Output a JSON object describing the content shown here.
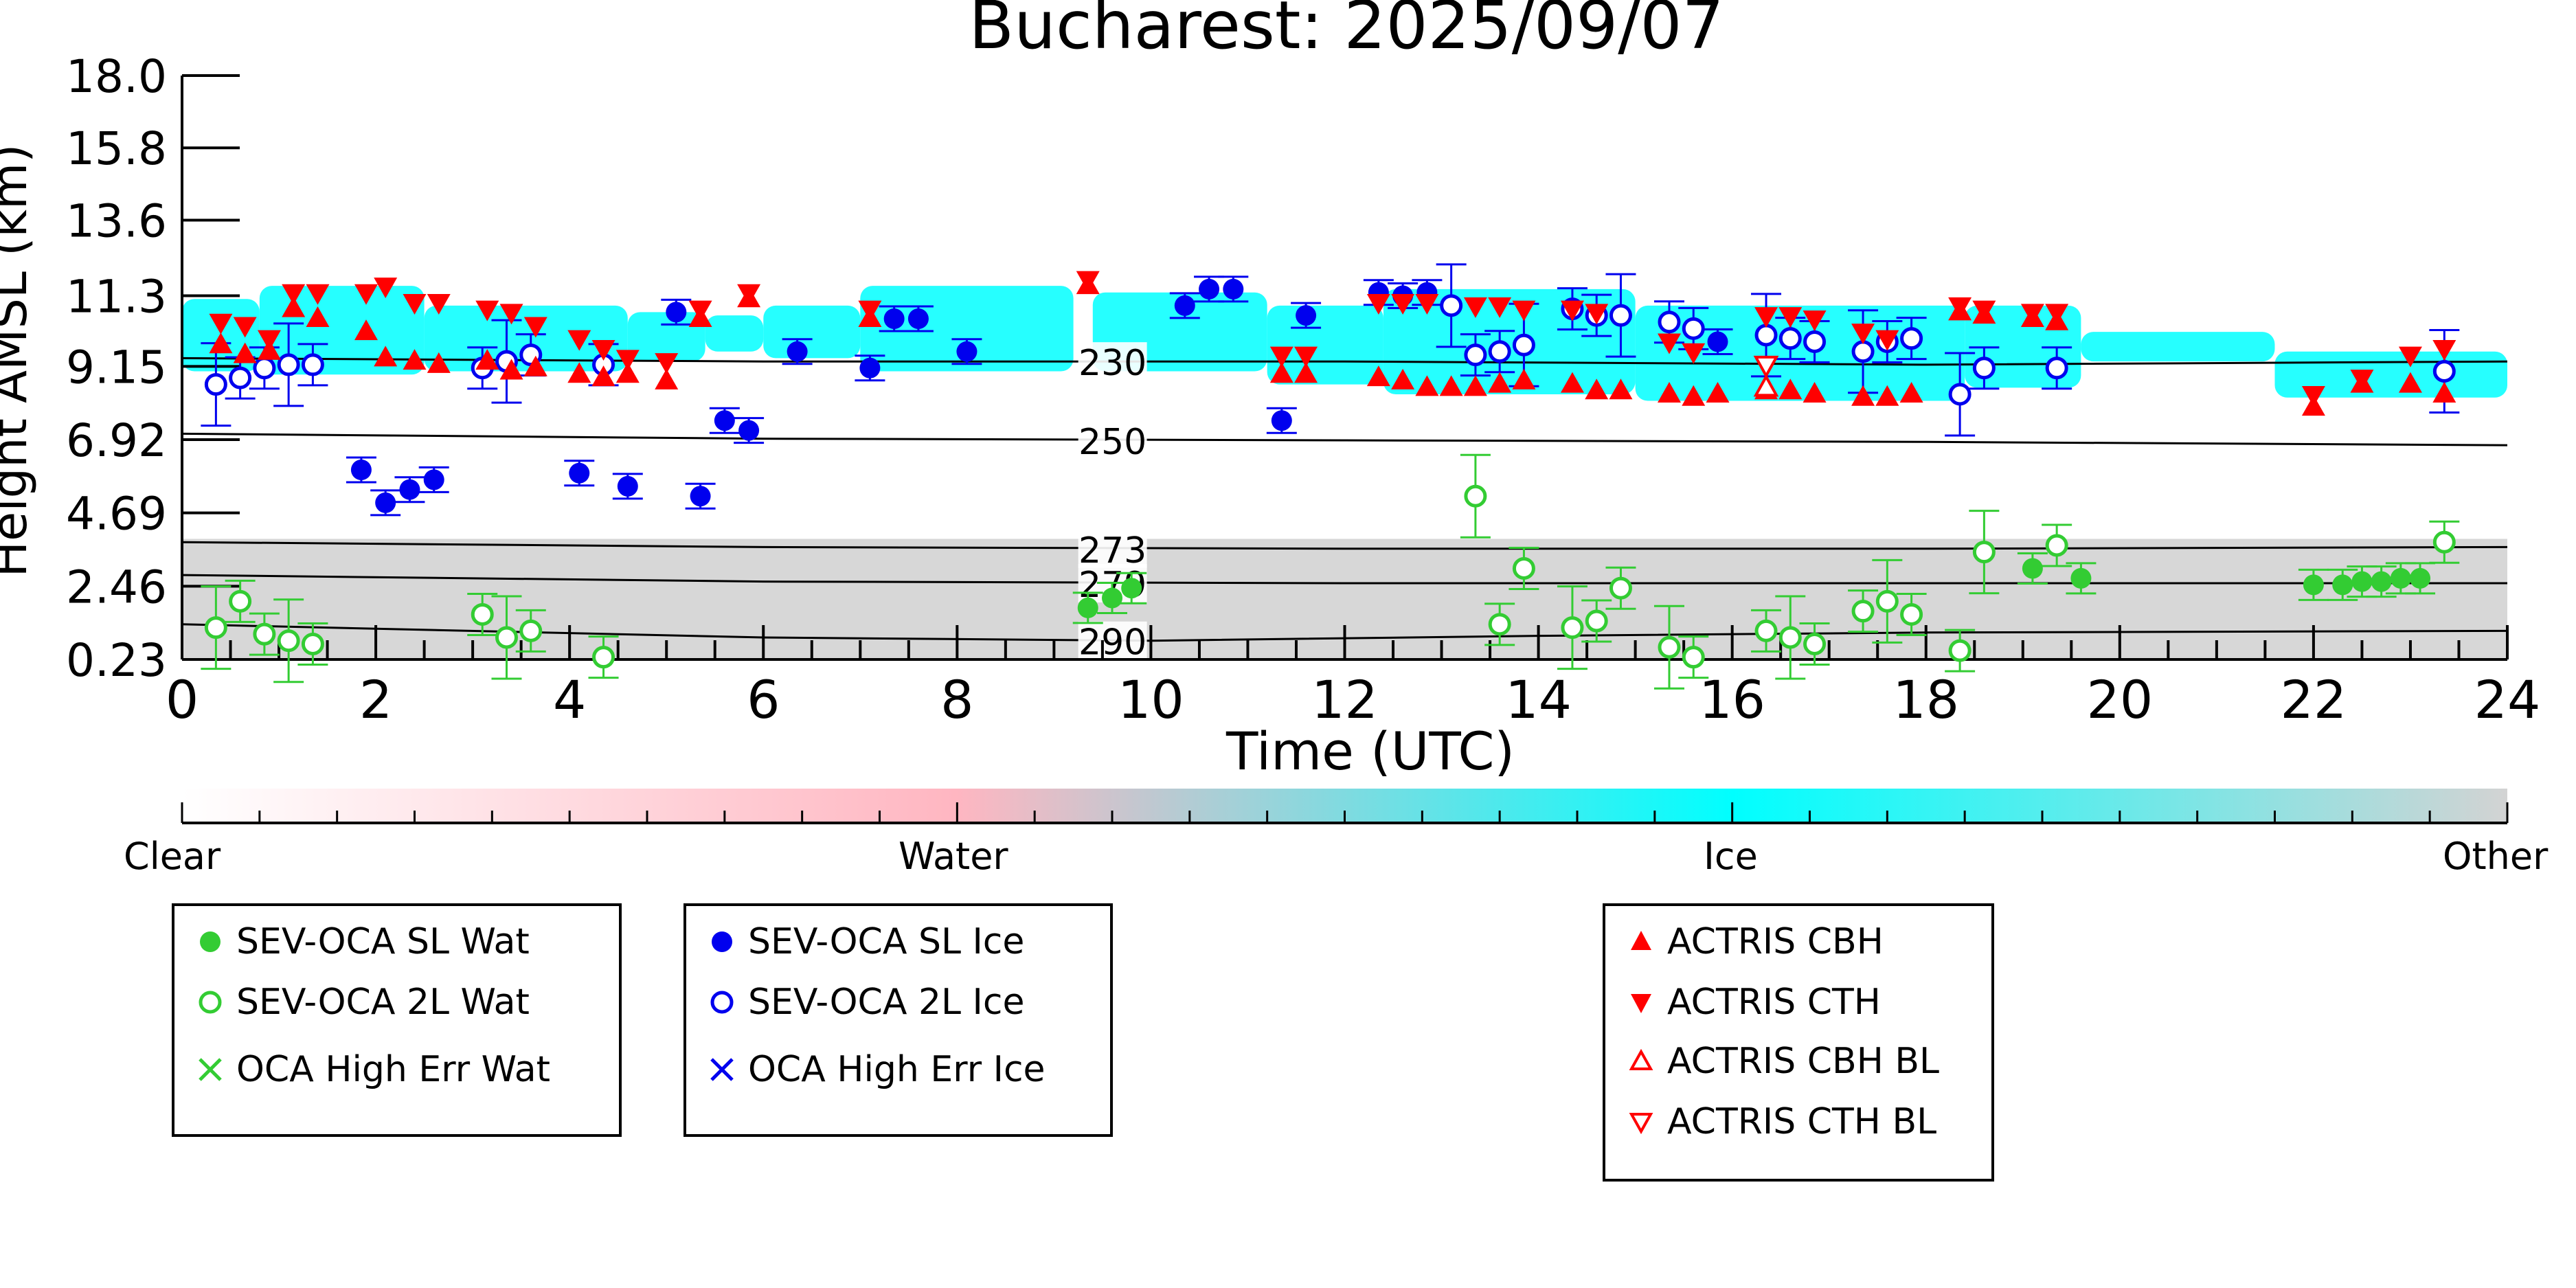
{
  "chart_data": {
    "type": "scatter",
    "title": "Bucharest: 2025/09/07",
    "xlabel": "Time (UTC)",
    "ylabel": "Height AMSL (km)",
    "xlim": [
      0,
      24
    ],
    "ylim": [
      0.23,
      18.0
    ],
    "xticks": [
      "0",
      "2",
      "4",
      "6",
      "8",
      "10",
      "12",
      "14",
      "16",
      "18",
      "20",
      "22",
      "24"
    ],
    "yticks": [
      "0.23",
      "2.46",
      "4.69",
      "6.92",
      "9.15",
      "11.3",
      "13.6",
      "15.8",
      "18.0"
    ],
    "ytick_values": [
      0.23,
      2.46,
      4.69,
      6.92,
      9.15,
      11.3,
      13.6,
      15.8,
      18.0
    ],
    "background": "cloud classification curtain (grey low layer ~0.3-3.9 km all day; cyan ice cloud ~8-11.5 km)",
    "temperature_contours": [
      {
        "label": "230",
        "points": [
          [
            0,
            9.4
          ],
          [
            6,
            9.3
          ],
          [
            12,
            9.3
          ],
          [
            18,
            9.2
          ],
          [
            24,
            9.3
          ]
        ]
      },
      {
        "label": "250",
        "points": [
          [
            0,
            7.1
          ],
          [
            6,
            6.95
          ],
          [
            12,
            6.9
          ],
          [
            18,
            6.85
          ],
          [
            24,
            6.75
          ]
        ]
      },
      {
        "label": "273",
        "points": [
          [
            0,
            3.8
          ],
          [
            6,
            3.65
          ],
          [
            12,
            3.6
          ],
          [
            18,
            3.6
          ],
          [
            24,
            3.65
          ]
        ]
      },
      {
        "label": "279",
        "points": [
          [
            0,
            2.8
          ],
          [
            6,
            2.6
          ],
          [
            12,
            2.55
          ],
          [
            18,
            2.55
          ],
          [
            24,
            2.55
          ]
        ]
      },
      {
        "label": "290",
        "points": [
          [
            0,
            1.3
          ],
          [
            6,
            0.9
          ],
          [
            10,
            0.8
          ],
          [
            14,
            0.95
          ],
          [
            18,
            1.05
          ],
          [
            24,
            1.1
          ]
        ]
      }
    ],
    "series": [
      {
        "name": "SEV-OCA SL Wat",
        "color": "#33cc33",
        "marker": "filled-circle",
        "points": [
          [
            9.35,
            1.8
          ],
          [
            9.6,
            2.1
          ],
          [
            9.8,
            2.4
          ],
          [
            19.1,
            3.0
          ],
          [
            19.6,
            2.7
          ],
          [
            22.0,
            2.5
          ],
          [
            22.3,
            2.5
          ],
          [
            22.5,
            2.6
          ],
          [
            22.7,
            2.6
          ],
          [
            22.9,
            2.7
          ],
          [
            23.1,
            2.7
          ]
        ]
      },
      {
        "name": "SEV-OCA 2L Wat",
        "color": "#33cc33",
        "marker": "open-circle",
        "points": [
          [
            0.35,
            1.2
          ],
          [
            0.6,
            2.0
          ],
          [
            0.85,
            1.0
          ],
          [
            1.1,
            0.8
          ],
          [
            1.35,
            0.7
          ],
          [
            3.1,
            1.6
          ],
          [
            3.35,
            0.9
          ],
          [
            3.6,
            1.1
          ],
          [
            4.35,
            0.3
          ],
          [
            13.35,
            5.2
          ],
          [
            13.6,
            1.3
          ],
          [
            13.85,
            3.0
          ],
          [
            14.35,
            1.2
          ],
          [
            14.6,
            1.4
          ],
          [
            14.85,
            2.4
          ],
          [
            15.35,
            0.6
          ],
          [
            15.6,
            0.3
          ],
          [
            16.35,
            1.1
          ],
          [
            16.6,
            0.9
          ],
          [
            16.85,
            0.7
          ],
          [
            17.35,
            1.7
          ],
          [
            17.6,
            2.0
          ],
          [
            17.85,
            1.6
          ],
          [
            18.35,
            0.5
          ],
          [
            18.6,
            3.5
          ],
          [
            19.35,
            3.7
          ],
          [
            23.35,
            3.8
          ]
        ]
      },
      {
        "name": "OCA High Err Wat",
        "color": "#33cc33",
        "marker": "x",
        "points": []
      },
      {
        "name": "SEV-OCA SL Ice",
        "color": "#0000ee",
        "marker": "filled-circle",
        "points": [
          [
            1.85,
            6.0
          ],
          [
            2.1,
            5.0
          ],
          [
            2.35,
            5.4
          ],
          [
            2.6,
            5.7
          ],
          [
            4.1,
            5.9
          ],
          [
            4.6,
            5.5
          ],
          [
            5.35,
            5.2
          ],
          [
            5.1,
            10.8
          ],
          [
            5.6,
            7.5
          ],
          [
            5.85,
            7.2
          ],
          [
            6.35,
            9.6
          ],
          [
            7.1,
            9.1
          ],
          [
            7.35,
            10.6
          ],
          [
            7.6,
            10.6
          ],
          [
            8.1,
            9.6
          ],
          [
            10.35,
            11.0
          ],
          [
            10.6,
            11.5
          ],
          [
            10.85,
            11.5
          ],
          [
            11.35,
            7.5
          ],
          [
            11.6,
            10.7
          ],
          [
            12.35,
            11.4
          ],
          [
            12.6,
            11.3
          ],
          [
            12.85,
            11.4
          ],
          [
            15.85,
            9.9
          ]
        ]
      },
      {
        "name": "SEV-OCA 2L Ice",
        "color": "#0000ee",
        "marker": "open-circle",
        "points": [
          [
            0.35,
            8.6
          ],
          [
            0.6,
            8.8
          ],
          [
            0.85,
            9.1
          ],
          [
            1.1,
            9.2
          ],
          [
            1.35,
            9.2
          ],
          [
            3.1,
            9.1
          ],
          [
            3.35,
            9.3
          ],
          [
            3.6,
            9.5
          ],
          [
            4.35,
            9.2
          ],
          [
            13.1,
            11.0
          ],
          [
            13.35,
            9.5
          ],
          [
            13.6,
            9.6
          ],
          [
            13.85,
            9.8
          ],
          [
            14.35,
            10.9
          ],
          [
            14.6,
            10.7
          ],
          [
            14.85,
            10.7
          ],
          [
            15.35,
            10.5
          ],
          [
            15.6,
            10.3
          ],
          [
            16.35,
            10.1
          ],
          [
            16.6,
            10.0
          ],
          [
            16.85,
            9.9
          ],
          [
            17.35,
            9.6
          ],
          [
            17.6,
            9.9
          ],
          [
            17.85,
            10.0
          ],
          [
            18.35,
            8.3
          ],
          [
            18.6,
            9.1
          ],
          [
            19.35,
            9.1
          ],
          [
            23.35,
            9.0
          ]
        ]
      },
      {
        "name": "OCA High Err Ice",
        "color": "#0000ee",
        "marker": "x",
        "points": []
      },
      {
        "name": "ACTRIS CBH",
        "color": "#ff0000",
        "marker": "triangle-up",
        "points": [
          [
            0.4,
            9.8
          ],
          [
            0.65,
            9.5
          ],
          [
            0.9,
            9.6
          ],
          [
            1.15,
            10.9
          ],
          [
            1.4,
            10.6
          ],
          [
            1.9,
            10.2
          ],
          [
            2.1,
            9.4
          ],
          [
            2.4,
            9.3
          ],
          [
            2.65,
            9.2
          ],
          [
            3.15,
            9.3
          ],
          [
            3.4,
            9.0
          ],
          [
            3.65,
            9.1
          ],
          [
            4.1,
            8.9
          ],
          [
            4.35,
            8.8
          ],
          [
            4.6,
            8.9
          ],
          [
            5.0,
            8.7
          ],
          [
            5.35,
            10.6
          ],
          [
            5.85,
            11.2
          ],
          [
            7.1,
            10.6
          ],
          [
            9.35,
            11.6
          ],
          [
            11.35,
            8.9
          ],
          [
            11.6,
            8.9
          ],
          [
            12.35,
            8.8
          ],
          [
            12.6,
            8.7
          ],
          [
            12.85,
            8.5
          ],
          [
            13.1,
            8.5
          ],
          [
            13.35,
            8.5
          ],
          [
            13.6,
            8.6
          ],
          [
            13.85,
            8.7
          ],
          [
            14.35,
            8.6
          ],
          [
            14.6,
            8.4
          ],
          [
            14.85,
            8.4
          ],
          [
            15.35,
            8.3
          ],
          [
            15.6,
            8.2
          ],
          [
            15.85,
            8.3
          ],
          [
            16.35,
            8.4
          ],
          [
            16.6,
            8.4
          ],
          [
            16.85,
            8.3
          ],
          [
            17.35,
            8.2
          ],
          [
            17.6,
            8.2
          ],
          [
            17.85,
            8.3
          ],
          [
            18.35,
            10.8
          ],
          [
            18.6,
            10.7
          ],
          [
            19.1,
            10.6
          ],
          [
            19.35,
            10.5
          ],
          [
            22.0,
            7.9
          ],
          [
            22.5,
            8.6
          ],
          [
            23.0,
            8.6
          ],
          [
            23.35,
            8.3
          ]
        ]
      },
      {
        "name": "ACTRIS CTH",
        "color": "#ff0000",
        "marker": "triangle-down",
        "points": [
          [
            0.4,
            10.5
          ],
          [
            0.65,
            10.4
          ],
          [
            0.9,
            10.0
          ],
          [
            1.15,
            11.4
          ],
          [
            1.4,
            11.4
          ],
          [
            1.9,
            11.4
          ],
          [
            2.1,
            11.6
          ],
          [
            2.4,
            11.1
          ],
          [
            2.65,
            11.1
          ],
          [
            3.15,
            10.9
          ],
          [
            3.4,
            10.8
          ],
          [
            3.65,
            10.4
          ],
          [
            4.1,
            10.0
          ],
          [
            4.35,
            9.7
          ],
          [
            4.6,
            9.4
          ],
          [
            5.0,
            9.3
          ],
          [
            5.35,
            10.9
          ],
          [
            5.85,
            11.4
          ],
          [
            7.1,
            10.9
          ],
          [
            9.35,
            11.8
          ],
          [
            11.35,
            9.5
          ],
          [
            11.6,
            9.5
          ],
          [
            12.35,
            11.1
          ],
          [
            12.6,
            11.1
          ],
          [
            12.85,
            11.1
          ],
          [
            13.35,
            11.0
          ],
          [
            13.6,
            11.0
          ],
          [
            13.85,
            10.9
          ],
          [
            14.35,
            10.9
          ],
          [
            14.6,
            10.8
          ],
          [
            15.35,
            9.9
          ],
          [
            15.6,
            9.6
          ],
          [
            16.35,
            10.7
          ],
          [
            16.6,
            10.7
          ],
          [
            16.85,
            10.6
          ],
          [
            17.35,
            10.2
          ],
          [
            17.6,
            10.0
          ],
          [
            18.35,
            11.0
          ],
          [
            18.6,
            10.9
          ],
          [
            19.1,
            10.8
          ],
          [
            19.35,
            10.8
          ],
          [
            22.0,
            8.3
          ],
          [
            22.5,
            8.8
          ],
          [
            23.0,
            9.5
          ],
          [
            23.35,
            9.7
          ]
        ]
      },
      {
        "name": "ACTRIS CBH BL",
        "color": "#ff0000",
        "marker": "open-triangle-up",
        "points": [
          [
            16.35,
            8.5
          ]
        ]
      },
      {
        "name": "ACTRIS CTH BL",
        "color": "#ff0000",
        "marker": "open-triangle-down",
        "points": [
          [
            16.35,
            9.2
          ]
        ]
      }
    ],
    "colorbar": {
      "labels": [
        "Clear",
        "Water",
        "Ice",
        "Other"
      ],
      "colors": [
        "#ffffff",
        "#ffb6c1",
        "#00ffff",
        "#d3d3d3"
      ]
    }
  },
  "legend": {
    "water": [
      "SEV-OCA SL Wat",
      "SEV-OCA 2L Wat",
      "OCA High Err Wat"
    ],
    "ice": [
      "SEV-OCA SL Ice",
      "SEV-OCA 2L Ice",
      "OCA High Err Ice"
    ],
    "actris": [
      "ACTRIS CBH",
      "ACTRIS CTH",
      "ACTRIS CBH BL",
      "ACTRIS CTH BL"
    ]
  },
  "colors": {
    "water": "#33cc33",
    "ice": "#0000ee",
    "actris": "#ff0000",
    "cloud_ice": "#00ffff",
    "cloud_other": "#d3d3d3"
  }
}
